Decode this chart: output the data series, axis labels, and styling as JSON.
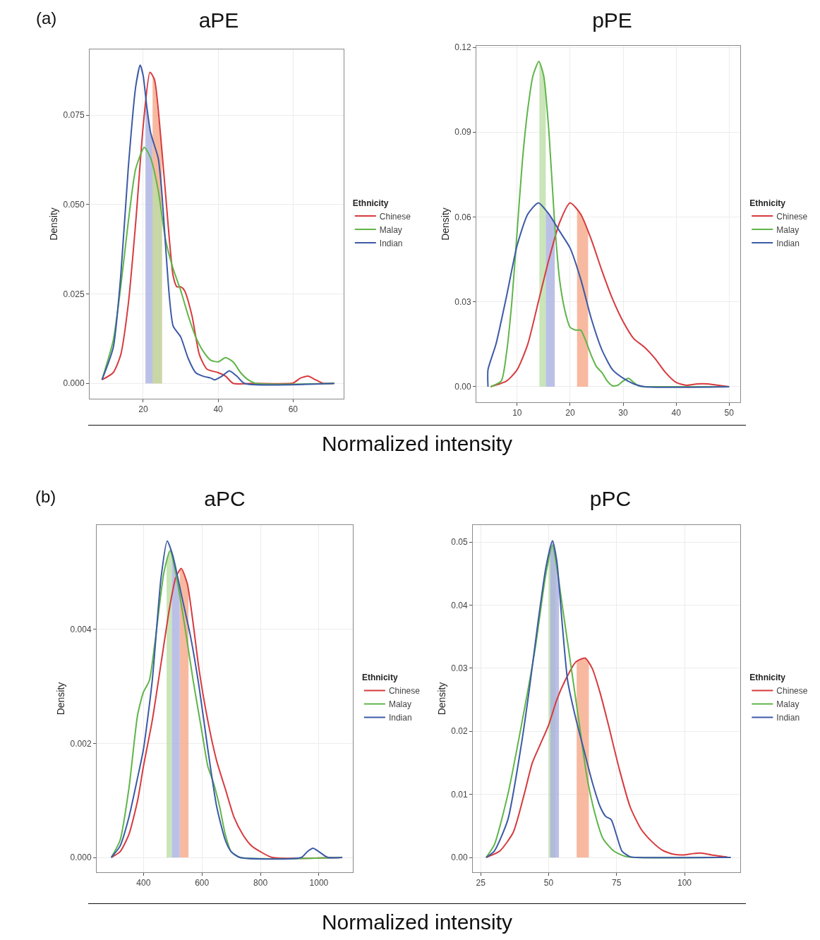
{
  "chart_data": [
    {
      "type": "line",
      "title": "aPE",
      "ylabel": "Density",
      "xlabel": "Normalized intensity",
      "legend_title": "Ethnicity",
      "legend": "right",
      "grid": true,
      "annotations": [
        "(a)"
      ],
      "xlim": [
        5.7,
        73.5
      ],
      "xticks": [
        20,
        40,
        60
      ],
      "ylim": [
        -0.0043,
        0.0934
      ],
      "yticks": [
        {
          "value": 0,
          "label": "0.000"
        },
        {
          "value": 0.025,
          "label": "0.025"
        },
        {
          "value": 0.05,
          "label": "0.050"
        },
        {
          "value": 0.075,
          "label": "0.075"
        }
      ],
      "series": [
        {
          "name": "Chinese",
          "color": "#d73a3e",
          "x": [
            9,
            12,
            14,
            16,
            18,
            20,
            21.8,
            23,
            25,
            27,
            28,
            29,
            30,
            31,
            33,
            35,
            37,
            40,
            42,
            44,
            50,
            60,
            62,
            64,
            66,
            68,
            71
          ],
          "values": [
            0.001,
            0.003,
            0.008,
            0.022,
            0.045,
            0.072,
            0.087,
            0.085,
            0.065,
            0.04,
            0.03,
            0.027,
            0.027,
            0.026,
            0.019,
            0.008,
            0.004,
            0.003,
            0.002,
            0,
            0,
            0.0001,
            0.0015,
            0.002,
            0.001,
            0,
            0
          ]
        },
        {
          "name": "Malay",
          "color": "#5fb548",
          "x": [
            9,
            12,
            14,
            16,
            18,
            20.3,
            22,
            24,
            26,
            28,
            30,
            32,
            34,
            36,
            38,
            40,
            42,
            44,
            46,
            48,
            50,
            71
          ],
          "values": [
            0.001,
            0.012,
            0.027,
            0.045,
            0.06,
            0.066,
            0.063,
            0.054,
            0.04,
            0.032,
            0.026,
            0.019,
            0.013,
            0.009,
            0.0065,
            0.006,
            0.0072,
            0.006,
            0.003,
            0.001,
            0,
            0
          ]
        },
        {
          "name": "Indian",
          "color": "#3c5aa6",
          "x": [
            9,
            12,
            14,
            16,
            18,
            19.2,
            20,
            21,
            22,
            24,
            25,
            26,
            27,
            28,
            30,
            32,
            34,
            36,
            38,
            39,
            41,
            43,
            45,
            47,
            71
          ],
          "values": [
            0.001,
            0.01,
            0.03,
            0.06,
            0.083,
            0.089,
            0.086,
            0.077,
            0.07,
            0.063,
            0.053,
            0.038,
            0.024,
            0.016,
            0.013,
            0.007,
            0.003,
            0.002,
            0.0015,
            0.001,
            0.002,
            0.0035,
            0.002,
            0,
            0
          ]
        }
      ],
      "bands": [
        {
          "axis": "x",
          "from": 22.5,
          "to": 25.0,
          "color": "#f5a98a"
        },
        {
          "axis": "x",
          "from": 22.5,
          "to": 25.0,
          "color": "#bcdfa8"
        },
        {
          "axis": "x",
          "from": 20.6,
          "to": 22.5,
          "color": "#aab0e0"
        }
      ]
    },
    {
      "type": "line",
      "title": "pPE",
      "ylabel": "Density",
      "legend_title": "Ethnicity",
      "legend": "right",
      "grid": true,
      "xlim": [
        2.3,
        52.1
      ],
      "xticks": [
        10,
        20,
        30,
        40,
        50
      ],
      "ylim": [
        -0.0055,
        0.1205
      ],
      "yticks": [
        {
          "value": 0,
          "label": "0.00"
        },
        {
          "value": 0.03,
          "label": "0.03"
        },
        {
          "value": 0.06,
          "label": "0.06"
        },
        {
          "value": 0.09,
          "label": "0.09"
        },
        {
          "value": 0.12,
          "label": "0.12"
        }
      ],
      "series": [
        {
          "name": "Chinese",
          "color": "#d73a3e",
          "x": [
            5,
            8,
            10,
            12,
            14,
            16,
            18,
            20,
            22,
            24,
            26,
            28,
            30,
            32,
            34,
            36,
            38,
            40,
            42,
            44,
            46,
            48,
            50
          ],
          "values": [
            0,
            0.002,
            0.006,
            0.015,
            0.03,
            0.045,
            0.058,
            0.065,
            0.061,
            0.052,
            0.041,
            0.031,
            0.023,
            0.017,
            0.014,
            0.01,
            0.005,
            0.0015,
            0.0005,
            0.001,
            0.001,
            0.0005,
            0
          ]
        },
        {
          "name": "Malay",
          "color": "#5fb548",
          "x": [
            5,
            7,
            8,
            9,
            10,
            11,
            12,
            13,
            14.1,
            15,
            16,
            17,
            18,
            19,
            20,
            21,
            22,
            23,
            24,
            25,
            26,
            27,
            28,
            29,
            30,
            31,
            32,
            33,
            35,
            50
          ],
          "values": [
            0,
            0.002,
            0.012,
            0.03,
            0.055,
            0.08,
            0.098,
            0.11,
            0.115,
            0.11,
            0.09,
            0.06,
            0.038,
            0.027,
            0.021,
            0.02,
            0.02,
            0.016,
            0.011,
            0.007,
            0.005,
            0.002,
            0.0003,
            0.0005,
            0.002,
            0.003,
            0.0015,
            0.0002,
            0,
            0
          ]
        },
        {
          "name": "Indian",
          "color": "#3c5aa6",
          "x": [
            4.5,
            4.5,
            6,
            8,
            10,
            12,
            14,
            16,
            18,
            20,
            22,
            24,
            26,
            28,
            30,
            32,
            34,
            50
          ],
          "values": [
            0,
            0.006,
            0.015,
            0.032,
            0.05,
            0.061,
            0.065,
            0.061,
            0.055,
            0.049,
            0.038,
            0.024,
            0.013,
            0.006,
            0.003,
            0.001,
            0,
            0
          ]
        }
      ],
      "bands": [
        {
          "axis": "x",
          "from": 21.3,
          "to": 23.4,
          "color": "#f5a98a"
        },
        {
          "axis": "x",
          "from": 14.2,
          "to": 15.4,
          "color": "#bcdfa8"
        },
        {
          "axis": "x",
          "from": 15.4,
          "to": 17.1,
          "color": "#aab0e0"
        }
      ]
    },
    {
      "type": "line",
      "title": "aPC",
      "ylabel": "Density",
      "xlabel": "Normalized intensity",
      "legend_title": "Ethnicity",
      "legend": "right",
      "grid": true,
      "annotations": [
        "(b)"
      ],
      "xlim": [
        240,
        1116
      ],
      "xticks": [
        400,
        600,
        800,
        1000
      ],
      "ylim": [
        -0.00026,
        0.00583
      ],
      "yticks": [
        {
          "value": 0,
          "label": "0.000"
        },
        {
          "value": 0.002,
          "label": "0.002"
        },
        {
          "value": 0.004,
          "label": "0.004"
        }
      ],
      "series": [
        {
          "name": "Chinese",
          "color": "#d73a3e",
          "x": [
            290,
            320,
            350,
            380,
            400,
            430,
            460,
            490,
            510,
            529,
            550,
            570,
            590,
            620,
            650,
            680,
            710,
            740,
            770,
            800,
            840,
            1080
          ],
          "values": [
            0,
            0.0001,
            0.0004,
            0.001,
            0.0016,
            0.0024,
            0.0034,
            0.0044,
            0.0049,
            0.00507,
            0.0048,
            0.0041,
            0.0033,
            0.0024,
            0.0017,
            0.0012,
            0.0007,
            0.0004,
            0.0002,
            0.0001,
            0,
            0
          ]
        },
        {
          "name": "Malay",
          "color": "#5fb548",
          "x": [
            290,
            320,
            350,
            380,
            400,
            420,
            440,
            470,
            491,
            510,
            540,
            570,
            600,
            620,
            640,
            660,
            680,
            700,
            730,
            1080
          ],
          "values": [
            0,
            0.0003,
            0.0012,
            0.0025,
            0.0029,
            0.0031,
            0.0038,
            0.005,
            0.00538,
            0.005,
            0.0041,
            0.0031,
            0.0022,
            0.0016,
            0.0013,
            0.0009,
            0.0004,
            0.0001,
            0,
            0
          ]
        },
        {
          "name": "Indian",
          "color": "#3c5aa6",
          "x": [
            290,
            320,
            350,
            380,
            400,
            430,
            460,
            481,
            500,
            530,
            560,
            590,
            620,
            650,
            680,
            700,
            730,
            940,
            960,
            980,
            1000,
            1030,
            1080
          ],
          "values": [
            0,
            0.0002,
            0.0007,
            0.0014,
            0.0019,
            0.0031,
            0.0049,
            0.00555,
            0.0053,
            0.0046,
            0.0039,
            0.003,
            0.0019,
            0.0009,
            0.0003,
            0.0001,
            0,
            0,
            0.0001,
            0.00016,
            0.0001,
            0,
            0
          ]
        }
      ],
      "bands": [
        {
          "axis": "x",
          "from": 524,
          "to": 554,
          "color": "#f5a98a"
        },
        {
          "axis": "x",
          "from": 479,
          "to": 497,
          "color": "#bcdfa8"
        },
        {
          "axis": "x",
          "from": 497,
          "to": 524,
          "color": "#aab0e0"
        }
      ]
    },
    {
      "type": "line",
      "title": "pPC",
      "ylabel": "Density",
      "legend_title": "Ethnicity",
      "legend": "right",
      "grid": true,
      "xlim": [
        22.1,
        120.5
      ],
      "xticks": [
        25,
        50,
        75,
        100
      ],
      "ylim": [
        -0.00235,
        0.0527
      ],
      "yticks": [
        {
          "value": 0,
          "label": "0.00"
        },
        {
          "value": 0.01,
          "label": "0.01"
        },
        {
          "value": 0.02,
          "label": "0.02"
        },
        {
          "value": 0.03,
          "label": "0.03"
        },
        {
          "value": 0.04,
          "label": "0.04"
        },
        {
          "value": 0.05,
          "label": "0.05"
        }
      ],
      "series": [
        {
          "name": "Chinese",
          "color": "#d73a3e",
          "x": [
            27,
            32,
            37,
            41,
            44,
            47,
            50,
            53,
            56,
            60,
            63.4,
            66,
            69,
            72,
            76,
            80,
            84,
            88,
            92,
            96,
            100,
            103,
            106,
            110,
            115,
            116
          ],
          "values": [
            0,
            0.001,
            0.004,
            0.01,
            0.015,
            0.018,
            0.021,
            0.025,
            0.028,
            0.031,
            0.0316,
            0.03,
            0.026,
            0.021,
            0.014,
            0.008,
            0.0045,
            0.0025,
            0.0011,
            0.0005,
            0.0004,
            0.0006,
            0.0007,
            0.0004,
            0.0001,
            0
          ]
        },
        {
          "name": "Malay",
          "color": "#5fb548",
          "x": [
            27,
            30,
            35,
            40,
            45,
            49,
            51.4,
            53,
            55,
            58,
            61,
            64,
            67,
            70,
            74,
            78,
            82,
            117
          ],
          "values": [
            0,
            0.002,
            0.01,
            0.021,
            0.033,
            0.045,
            0.0495,
            0.046,
            0.04,
            0.031,
            0.022,
            0.013,
            0.007,
            0.003,
            0.001,
            0.0002,
            0,
            0
          ]
        },
        {
          "name": "Indian",
          "color": "#3c5aa6",
          "x": [
            27,
            30,
            35,
            40,
            43,
            46,
            49,
            51.4,
            53,
            55,
            57,
            60,
            63,
            66,
            69,
            71,
            73,
            75,
            77,
            80,
            83,
            117
          ],
          "values": [
            0,
            0.001,
            0.006,
            0.018,
            0.027,
            0.037,
            0.046,
            0.0502,
            0.047,
            0.037,
            0.028,
            0.022,
            0.017,
            0.012,
            0.008,
            0.0065,
            0.006,
            0.0035,
            0.001,
            0.0001,
            0,
            0
          ]
        }
      ],
      "bands": [
        {
          "axis": "x",
          "from": 60.3,
          "to": 64.8,
          "color": "#f5a98a"
        },
        {
          "axis": "x",
          "from": 50,
          "to": 52.6,
          "color": "#bcdfa8"
        },
        {
          "axis": "x",
          "from": 50.6,
          "to": 53.8,
          "color": "#aab0e0"
        }
      ]
    }
  ]
}
